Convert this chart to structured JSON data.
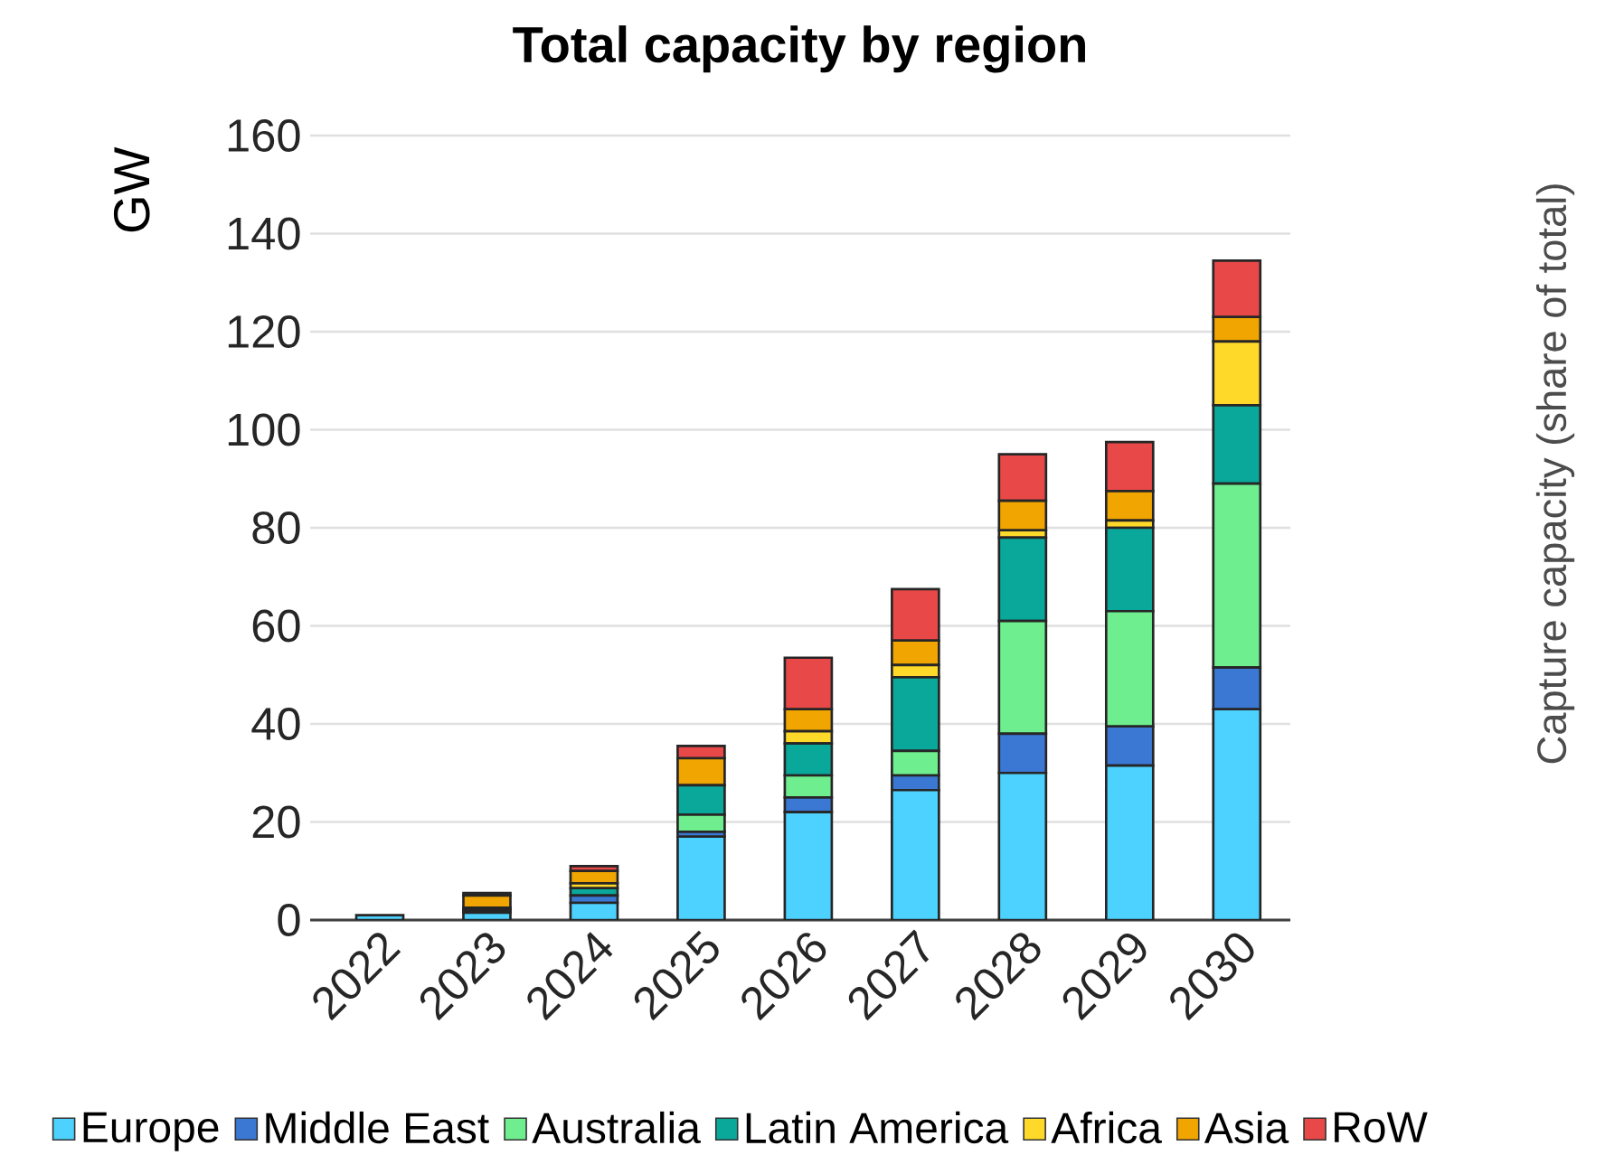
{
  "chart_data": {
    "type": "bar",
    "title": "Total capacity by region",
    "ylabel": "GW",
    "categories": [
      "2022",
      "2023",
      "2024",
      "2025",
      "2026",
      "2027",
      "2028",
      "2029",
      "2030"
    ],
    "stacked": true,
    "ylim": [
      0,
      160
    ],
    "yticks": [
      0,
      20,
      40,
      60,
      80,
      100,
      120,
      140,
      160
    ],
    "grid": "y",
    "legend": "bottom",
    "series": [
      {
        "name": "Europe",
        "color": "#4dd2ff",
        "values": [
          1,
          1.5,
          3.5,
          17,
          22,
          26.5,
          30,
          31.5,
          43
        ]
      },
      {
        "name": "Middle East",
        "color": "#3a78d4",
        "values": [
          0,
          0.5,
          1.5,
          1,
          3,
          3,
          8,
          8,
          8.5
        ]
      },
      {
        "name": "Australia",
        "color": "#6eee8e",
        "values": [
          0,
          0,
          null,
          3.5,
          4.5,
          5,
          23,
          23.5,
          37.5
        ]
      },
      {
        "name": "Latin America",
        "color": "#0aa89a",
        "values": [
          0,
          0.5,
          1.5,
          6,
          6.5,
          15,
          17,
          17,
          16
        ]
      },
      {
        "name": "Africa",
        "color": "#ffd92a",
        "values": [
          0,
          null,
          1,
          null,
          2.5,
          2.5,
          1.5,
          1.5,
          13
        ]
      },
      {
        "name": "Asia",
        "color": "#f0a500",
        "values": [
          null,
          2.5,
          2.5,
          5.5,
          4.5,
          5,
          6,
          6,
          5
        ]
      },
      {
        "name": "RoW",
        "color": "#e84848",
        "values": [
          0,
          0.5,
          1,
          2.5,
          10.5,
          10.5,
          9.5,
          10,
          11.5
        ]
      }
    ],
    "annotations": [
      "Capture capacity (share of total)"
    ]
  }
}
